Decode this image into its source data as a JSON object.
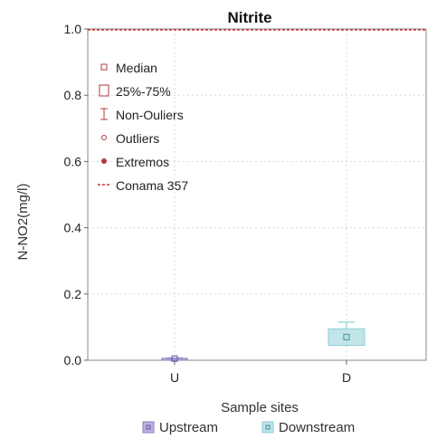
{
  "chart_data": {
    "type": "box",
    "title": "Nitrite",
    "xlabel": "Sample sites",
    "ylabel": "N-NO2(mg/l)",
    "ylim": [
      0.0,
      1.0
    ],
    "yticks": [
      "0.0",
      "0.2",
      "0.4",
      "0.6",
      "0.8",
      "1.0"
    ],
    "categories": [
      "U",
      "D"
    ],
    "series": [
      {
        "name": "Upstream",
        "category": "U",
        "color": "#8e7cc3",
        "median": 0.005,
        "q1": 0.002,
        "q3": 0.006,
        "whisker_low": 0.0,
        "whisker_high": 0.007
      },
      {
        "name": "Downstream",
        "category": "D",
        "color": "#8fd0d8",
        "median": 0.07,
        "q1": 0.045,
        "q3": 0.095,
        "whisker_low": 0.045,
        "whisker_high": 0.115
      }
    ],
    "reference_line": {
      "label": "Conama 357",
      "value": 1.0,
      "color": "#cc3333"
    },
    "legend_items": [
      "Median",
      "25%-75%",
      "Non-Ouliers",
      "Outliers",
      "Extremos",
      "Conama 357"
    ],
    "legend_placement": "top-left",
    "grid": true
  }
}
